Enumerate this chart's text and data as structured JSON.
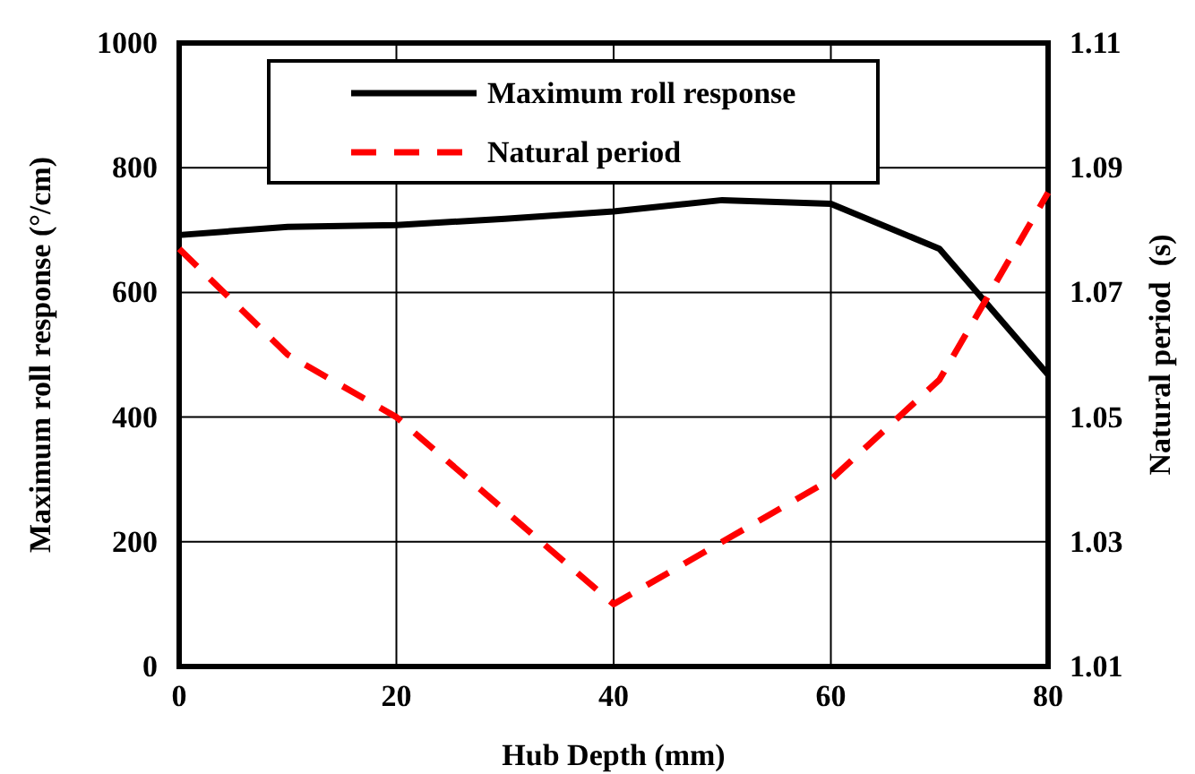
{
  "chart_data": {
    "type": "line",
    "xlabel": "Hub Depth (mm)",
    "ylabel": "Maximum roll response (°/cm)",
    "y2label": "Natural period  (s)",
    "x": [
      0,
      10,
      20,
      30,
      40,
      50,
      60,
      70,
      80
    ],
    "series": [
      {
        "name": "Maximum roll response",
        "color": "#000000",
        "line_style": "solid",
        "values": [
          692,
          705,
          708,
          718,
          730,
          748,
          742,
          670,
          468
        ]
      },
      {
        "name": "Natural period",
        "color": "#ff0000",
        "line_style": "dashed",
        "axis": "y2",
        "values": [
          1.077,
          1.06,
          1.05,
          1.035,
          1.02,
          1.03,
          1.04,
          1.056,
          1.086
        ]
      }
    ],
    "xlim": [
      0,
      80
    ],
    "xticks": [
      0,
      20,
      40,
      60,
      80
    ],
    "ylim": [
      0,
      1000
    ],
    "yticks": [
      0,
      200,
      400,
      600,
      800,
      1000
    ],
    "y2lim": [
      1.01,
      1.11
    ],
    "y2ticks": [
      {
        "value": 1.01,
        "label": "1.01"
      },
      {
        "value": 1.03,
        "label": "1.03"
      },
      {
        "value": 1.05,
        "label": "1.05"
      },
      {
        "value": 1.07,
        "label": "1.07"
      },
      {
        "value": 1.09,
        "label": "1.09"
      },
      {
        "value": 1.11,
        "label": "1.11"
      }
    ],
    "grid": true,
    "legend": "top",
    "marker": "none"
  }
}
